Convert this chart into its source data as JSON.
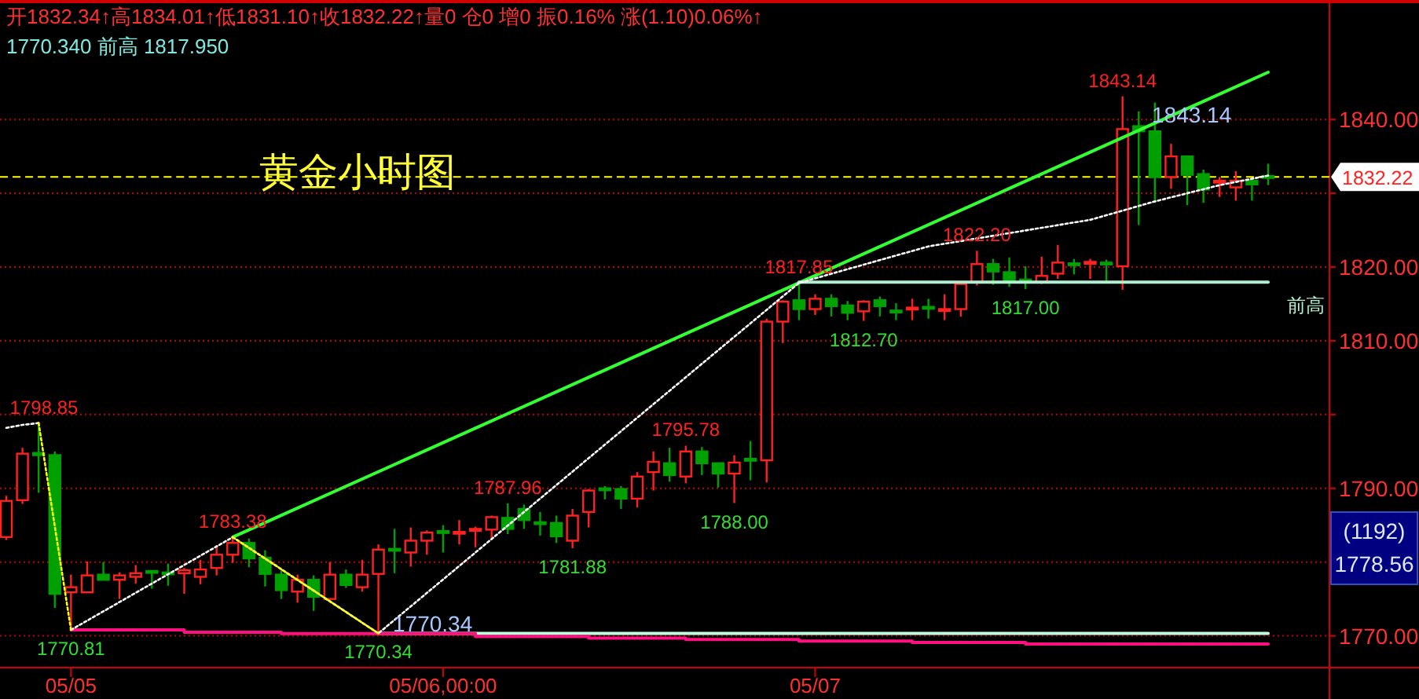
{
  "chart_data": {
    "type": "candlestick",
    "title": "开1832.34↑高1834.01↑低1831.10↑收1832.22↑量0  仓0  增0  振0.16%  涨(1.10)0.06%↑",
    "subtitle": "1770.340  前高 1817.950",
    "categories": [
      null,
      null,
      null,
      null,
      "05/05",
      null,
      null,
      null,
      null,
      null,
      null,
      null,
      null,
      null,
      null,
      null,
      null,
      null,
      null,
      null,
      null,
      null,
      null,
      null,
      null,
      null,
      null,
      "05/06,00:00",
      null,
      null,
      null,
      null,
      null,
      null,
      null,
      null,
      null,
      null,
      null,
      null,
      null,
      null,
      null,
      null,
      null,
      null,
      null,
      null,
      null,
      null,
      "05/07",
      null,
      null,
      null,
      null,
      null,
      null,
      null,
      null,
      null,
      null,
      null,
      null,
      null,
      null,
      null,
      null,
      null,
      null,
      null,
      null,
      null,
      null,
      null,
      null,
      null,
      null,
      null,
      null
    ],
    "ohlc": [
      [
        1783.4,
        1789.0,
        1783.0,
        1788.3
      ],
      [
        1788.4,
        1795.5,
        1787.9,
        1794.7
      ],
      [
        1794.8,
        1798.85,
        1789.4,
        1794.5
      ],
      [
        1794.5,
        1795.0,
        1773.8,
        1775.7
      ],
      [
        1775.9,
        1778.3,
        1770.81,
        1776.6
      ],
      [
        1775.9,
        1780.1,
        1775.9,
        1778.2
      ],
      [
        1778.3,
        1780.0,
        1777.6,
        1777.6
      ],
      [
        1777.6,
        1778.6,
        1775.0,
        1778.2
      ],
      [
        1778.0,
        1779.6,
        1777.1,
        1778.5
      ],
      [
        1778.8,
        1778.9,
        1776.4,
        1778.6
      ],
      [
        1778.6,
        1779.8,
        1776.8,
        1778.4
      ],
      [
        1778.5,
        1779.2,
        1775.7,
        1778.9
      ],
      [
        1778.0,
        1780.3,
        1777.0,
        1779.0
      ],
      [
        1779.2,
        1782.3,
        1778.2,
        1781.0
      ],
      [
        1781.0,
        1783.38,
        1779.9,
        1782.6
      ],
      [
        1782.6,
        1783.2,
        1779.3,
        1780.5
      ],
      [
        1780.6,
        1781.6,
        1776.7,
        1778.4
      ],
      [
        1778.3,
        1778.9,
        1775.0,
        1776.2
      ],
      [
        1776.0,
        1778.3,
        1774.5,
        1777.6
      ],
      [
        1777.6,
        1778.2,
        1773.4,
        1775.3
      ],
      [
        1775.0,
        1780.0,
        1774.8,
        1778.3
      ],
      [
        1778.3,
        1779.0,
        1776.5,
        1776.9
      ],
      [
        1776.6,
        1780.3,
        1776.0,
        1778.3
      ],
      [
        1778.4,
        1782.4,
        1770.34,
        1781.7
      ],
      [
        1781.8,
        1784.5,
        1778.5,
        1781.6
      ],
      [
        1781.3,
        1784.7,
        1779.4,
        1782.9
      ],
      [
        1782.9,
        1784.3,
        1781.0,
        1784.0
      ],
      [
        1784.2,
        1785.0,
        1781.3,
        1784.0
      ],
      [
        1783.9,
        1785.7,
        1782.4,
        1784.1
      ],
      [
        1784.3,
        1784.8,
        1782.0,
        1784.5
      ],
      [
        1784.4,
        1786.3,
        1783.0,
        1786.1
      ],
      [
        1786.0,
        1787.96,
        1783.8,
        1784.5
      ],
      [
        1787.2,
        1787.8,
        1784.5,
        1785.7
      ],
      [
        1785.4,
        1786.8,
        1783.6,
        1785.2
      ],
      [
        1785.3,
        1786.3,
        1782.6,
        1783.5
      ],
      [
        1782.9,
        1787.2,
        1781.88,
        1786.3
      ],
      [
        1786.8,
        1789.9,
        1784.7,
        1789.7
      ],
      [
        1790.0,
        1790.3,
        1788.5,
        1789.8
      ],
      [
        1789.9,
        1790.3,
        1787.2,
        1788.6
      ],
      [
        1788.6,
        1792.2,
        1787.4,
        1791.6
      ],
      [
        1792.2,
        1795.0,
        1789.7,
        1793.6
      ],
      [
        1793.4,
        1795.5,
        1790.9,
        1791.8
      ],
      [
        1791.6,
        1795.78,
        1790.7,
        1795.0
      ],
      [
        1795.0,
        1795.6,
        1791.8,
        1793.4
      ],
      [
        1793.4,
        1793.5,
        1790.1,
        1792.0
      ],
      [
        1792.0,
        1794.5,
        1788.0,
        1793.5
      ],
      [
        1794.0,
        1796.4,
        1791.1,
        1793.8
      ],
      [
        1793.8,
        1813.0,
        1790.8,
        1812.6
      ],
      [
        1812.6,
        1815.5,
        1809.7,
        1815.3
      ],
      [
        1815.5,
        1817.85,
        1812.8,
        1814.3
      ],
      [
        1814.3,
        1816.3,
        1813.5,
        1815.7
      ],
      [
        1815.7,
        1816.3,
        1813.3,
        1814.7
      ],
      [
        1814.8,
        1815.4,
        1812.8,
        1813.8
      ],
      [
        1814.0,
        1815.5,
        1812.7,
        1815.3
      ],
      [
        1815.5,
        1816.0,
        1813.3,
        1814.7
      ],
      [
        1814.1,
        1815.1,
        1812.8,
        1814.0
      ],
      [
        1814.4,
        1815.7,
        1812.8,
        1814.5
      ],
      [
        1814.6,
        1815.7,
        1813.0,
        1814.5
      ],
      [
        1814.2,
        1816.3,
        1812.8,
        1814.3
      ],
      [
        1814.3,
        1817.9,
        1813.3,
        1817.7
      ],
      [
        1817.9,
        1822.2,
        1817.5,
        1820.4
      ],
      [
        1820.4,
        1821.1,
        1817.6,
        1819.4
      ],
      [
        1819.3,
        1821.3,
        1817.3,
        1817.9
      ],
      [
        1818.3,
        1820.1,
        1817.0,
        1817.9
      ],
      [
        1817.9,
        1821.4,
        1817.7,
        1818.8
      ],
      [
        1819.1,
        1823.0,
        1818.4,
        1820.6
      ],
      [
        1820.5,
        1821.1,
        1819.0,
        1820.4
      ],
      [
        1820.6,
        1821.1,
        1818.4,
        1820.7
      ],
      [
        1820.6,
        1821.0,
        1818.0,
        1820.5
      ],
      [
        1820.1,
        1843.14,
        1816.9,
        1838.7
      ],
      [
        1839.1,
        1841.1,
        1825.7,
        1838.4
      ],
      [
        1838.4,
        1842.3,
        1828.7,
        1832.2
      ],
      [
        1832.2,
        1836.7,
        1830.6,
        1835.0
      ],
      [
        1835.0,
        1835.0,
        1828.4,
        1832.5
      ],
      [
        1832.6,
        1833.2,
        1828.7,
        1830.5
      ],
      [
        1831.6,
        1832.2,
        1829.5,
        1831.7
      ],
      [
        1830.8,
        1833.0,
        1829.0,
        1831.7
      ],
      [
        1831.7,
        1831.7,
        1829.0,
        1831.2
      ],
      [
        1832.34,
        1834.01,
        1831.1,
        1832.22
      ]
    ],
    "series": [
      {
        "type": "line",
        "color": "#33ff33",
        "values": [
          null,
          null,
          null,
          null,
          null,
          null,
          null,
          null,
          null,
          null,
          null,
          null,
          null,
          null,
          1783.38,
          null,
          null,
          null,
          null,
          null,
          null,
          null,
          null,
          null,
          null,
          null,
          null,
          null,
          null,
          null,
          null,
          null,
          null,
          null,
          null,
          null,
          null,
          null,
          null,
          null,
          null,
          null,
          null,
          null,
          null,
          null,
          null,
          null,
          null,
          1817.85,
          null,
          null,
          null,
          null,
          null,
          null,
          null,
          null,
          null,
          null,
          null,
          null,
          null,
          null,
          null,
          null,
          null,
          null,
          null,
          null,
          null,
          null,
          null,
          null,
          null,
          null,
          null,
          null,
          1846.4
        ]
      },
      {
        "type": "line",
        "color": "#ffff00",
        "line_style": "dotted",
        "values": [
          null,
          null,
          1798.85,
          null,
          1770.81,
          null,
          null,
          null,
          null,
          null,
          null,
          null,
          null,
          null,
          null,
          null,
          null,
          null,
          null,
          null,
          null,
          null,
          null,
          null,
          null,
          null,
          null,
          null,
          null,
          null,
          null,
          null,
          null,
          null,
          null,
          null,
          null,
          null,
          null,
          null,
          null,
          null,
          null,
          null,
          null,
          null,
          null,
          null,
          null,
          null,
          null,
          null,
          null,
          null,
          null,
          null,
          null,
          null,
          null,
          null,
          null,
          null,
          null,
          null,
          null,
          null,
          null,
          null,
          null,
          null,
          null,
          null,
          null,
          null,
          null,
          null,
          null,
          null,
          null
        ]
      },
      {
        "type": "line",
        "color": "#ffff00",
        "line_style": "dotted",
        "values": [
          null,
          null,
          null,
          null,
          null,
          null,
          null,
          null,
          null,
          null,
          null,
          null,
          null,
          null,
          1783.38,
          null,
          null,
          null,
          null,
          null,
          null,
          null,
          null,
          1770.34,
          null,
          null,
          null,
          null,
          null,
          null,
          null,
          null,
          null,
          null,
          null,
          null,
          null,
          null,
          null,
          null,
          null,
          null,
          null,
          null,
          null,
          null,
          null,
          null,
          null,
          null,
          null,
          null,
          null,
          null,
          null,
          null,
          null,
          null,
          null,
          null,
          null,
          null,
          null,
          null,
          null,
          null,
          null,
          null,
          null,
          null,
          null,
          null,
          null,
          null,
          null,
          null,
          null,
          null,
          null
        ]
      },
      {
        "type": "line",
        "color": "#ffffff",
        "line_style": "dotted",
        "values": [
          1798.2,
          1798.6,
          1798.85,
          null,
          null,
          null,
          null,
          null,
          null,
          null,
          null,
          null,
          null,
          null,
          null,
          null,
          null,
          null,
          null,
          null,
          null,
          null,
          null,
          null,
          null,
          null,
          null,
          null,
          null,
          null,
          null,
          null,
          null,
          null,
          null,
          null,
          null,
          null,
          null,
          null,
          null,
          null,
          null,
          null,
          null,
          null,
          null,
          null,
          null,
          null,
          null,
          null,
          null,
          null,
          null,
          null,
          null,
          null,
          null,
          null,
          null,
          null,
          null,
          null,
          null,
          null,
          null,
          null,
          null,
          null,
          null,
          null,
          null,
          null,
          null,
          null,
          null,
          null,
          null
        ]
      },
      {
        "type": "line",
        "color": "#ffffff",
        "line_style": "dotted",
        "values": [
          null,
          null,
          null,
          null,
          1770.81,
          null,
          null,
          null,
          null,
          null,
          null,
          null,
          null,
          null,
          1783.38,
          null,
          null,
          null,
          null,
          null,
          null,
          null,
          null,
          1770.34,
          null,
          null,
          null,
          null,
          null,
          null,
          null,
          null,
          null,
          null,
          null,
          null,
          null,
          null,
          null,
          null,
          null,
          null,
          null,
          null,
          null,
          null,
          null,
          null,
          null,
          1817.85,
          null,
          null,
          null,
          null,
          null,
          null,
          null,
          1822.8,
          null,
          null,
          null,
          null,
          null,
          null,
          null,
          null,
          null,
          1826.4,
          null,
          null,
          null,
          1828.9,
          null,
          null,
          null,
          1831.1,
          null,
          null,
          1832.4
        ]
      },
      {
        "type": "line",
        "name": "前高",
        "color": "#b0f0d0",
        "values": [
          null,
          null,
          null,
          null,
          null,
          null,
          null,
          null,
          null,
          null,
          null,
          null,
          null,
          null,
          null,
          null,
          null,
          null,
          null,
          null,
          null,
          null,
          null,
          null,
          null,
          null,
          null,
          null,
          null,
          null,
          null,
          null,
          null,
          null,
          null,
          null,
          null,
          null,
          null,
          null,
          null,
          null,
          null,
          null,
          null,
          null,
          null,
          null,
          null,
          1817.95,
          1817.95,
          1817.95,
          1817.95,
          1817.95,
          1817.95,
          1817.95,
          1817.95,
          1817.95,
          1817.95,
          1817.95,
          1817.95,
          1817.95,
          1817.95,
          1817.95,
          1817.95,
          1817.95,
          1817.95,
          1817.95,
          1817.95,
          1817.95,
          1817.95,
          1817.95,
          1817.95,
          1817.95,
          1817.95,
          1817.95,
          1817.95,
          1817.95,
          1817.95
        ]
      },
      {
        "type": "line",
        "color": "#c0ffe0",
        "values": [
          null,
          null,
          null,
          null,
          null,
          null,
          null,
          null,
          null,
          null,
          null,
          null,
          null,
          null,
          null,
          null,
          null,
          null,
          null,
          null,
          null,
          null,
          null,
          1770.34,
          1770.34,
          1770.34,
          1770.34,
          1770.34,
          1770.34,
          1770.34,
          1770.34,
          1770.34,
          1770.34,
          1770.34,
          1770.34,
          1770.34,
          1770.34,
          1770.34,
          1770.34,
          1770.34,
          1770.34,
          1770.34,
          1770.34,
          1770.34,
          1770.34,
          1770.34,
          1770.34,
          1770.34,
          1770.34,
          1770.34,
          1770.34,
          1770.34,
          1770.34,
          1770.34,
          1770.34,
          1770.34,
          1770.34,
          1770.34,
          1770.34,
          1770.34,
          1770.34,
          1770.34,
          1770.34,
          1770.34,
          1770.34,
          1770.34,
          1770.34,
          1770.34,
          1770.34,
          1770.34,
          1770.34,
          1770.34,
          1770.34,
          1770.34,
          1770.34,
          1770.34,
          1770.34,
          1770.34,
          1770.34
        ]
      },
      {
        "type": "step",
        "color": "#ff1080",
        "values": [
          null,
          null,
          null,
          null,
          1770.8,
          1770.8,
          1770.8,
          1770.8,
          1770.8,
          1770.8,
          1770.8,
          1770.5,
          1770.5,
          1770.5,
          1770.5,
          1770.5,
          1770.5,
          1770.3,
          1770.3,
          1770.3,
          1770.3,
          1770.3,
          1770.3,
          1770.3,
          1770.3,
          1770.3,
          1770.3,
          1770.3,
          1770.3,
          1769.9,
          1769.9,
          1769.9,
          1769.9,
          1769.9,
          1769.9,
          1769.9,
          1769.7,
          1769.7,
          1769.7,
          1769.7,
          1769.7,
          1769.7,
          1769.5,
          1769.5,
          1769.5,
          1769.5,
          1769.5,
          1769.5,
          1769.5,
          1769.3,
          1769.3,
          1769.3,
          1769.3,
          1769.3,
          1769.3,
          1769.3,
          1769.1,
          1769.1,
          1769.1,
          1769.1,
          1769.1,
          1769.1,
          1769.1,
          1768.9,
          1768.9,
          1768.9,
          1768.9,
          1768.9,
          1768.9,
          1768.9,
          1768.9,
          1768.9,
          1768.9,
          1768.9,
          1768.9,
          1768.9,
          1768.9,
          1768.9,
          1768.9
        ]
      }
    ],
    "ylim": [
      1765.7,
      1856.2
    ],
    "yticks": [
      {
        "value": 1770,
        "label": "1770.00"
      },
      {
        "value": 1780,
        "label": null
      },
      {
        "value": 1790,
        "label": "1790.00"
      },
      {
        "value": 1800,
        "label": null
      },
      {
        "value": 1810,
        "label": "1810.00"
      },
      {
        "value": 1820,
        "label": "1820.00"
      },
      {
        "value": 1830,
        "label": null
      },
      {
        "value": 1840,
        "label": "1840.00"
      }
    ],
    "grid": "y",
    "ref_lines": [
      {
        "axis": "y",
        "value": 1832.22,
        "label": "1832.22",
        "color": "#ffff00",
        "line_style": "dashed"
      }
    ],
    "annotations": [
      "黄金小时图",
      "(1192)",
      "1778.56",
      "1770.34",
      "1843.14",
      {
        "text": "1798.85",
        "y": 1798.85
      },
      {
        "text": "1770.81",
        "y": 1770.81
      },
      {
        "text": "1783.38",
        "y": 1783.38
      },
      {
        "text": "1770.34",
        "y": 1770.34
      },
      {
        "text": "1787.96",
        "y": 1787.96
      },
      {
        "text": "1781.88",
        "y": 1781.88
      },
      {
        "text": "1795.78",
        "y": 1795.78
      },
      {
        "text": "1788.00",
        "y": 1788.0
      },
      {
        "text": "1817.85",
        "y": 1817.85
      },
      {
        "text": "1812.70",
        "y": 1812.7
      },
      {
        "text": "1822.20",
        "y": 1822.2
      },
      {
        "text": "1817.00",
        "y": 1817.0
      },
      {
        "text": "1843.14",
        "y": 1843.14
      }
    ]
  }
}
